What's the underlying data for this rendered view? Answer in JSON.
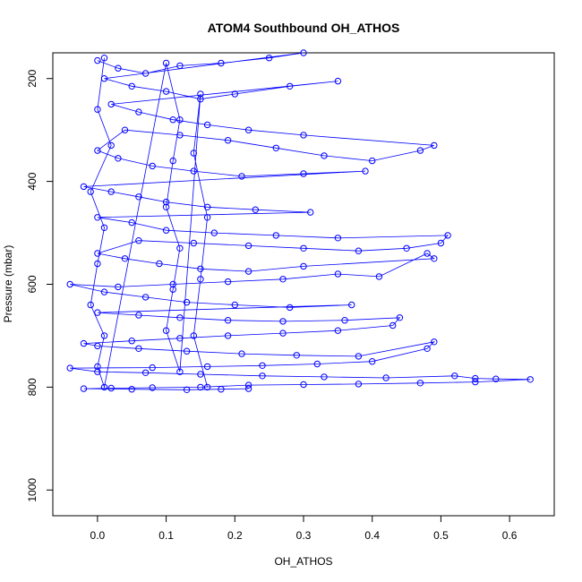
{
  "chart_data": {
    "type": "scatter",
    "title": "ATOM4 Southbound OH_ATHOS",
    "xlabel": "OH_ATHOS",
    "ylabel": "Pressure (mbar)",
    "xlim": [
      -0.065,
      0.665
    ],
    "ylim": [
      1050,
      150
    ],
    "y_reversed": true,
    "x_ticks": [
      0.0,
      0.1,
      0.2,
      0.3,
      0.4,
      0.5,
      0.6
    ],
    "x_tick_labels": [
      "0.0",
      "0.1",
      "0.2",
      "0.3",
      "0.4",
      "0.5",
      "0.6"
    ],
    "y_ticks": [
      200,
      400,
      600,
      800,
      1000
    ],
    "y_tick_labels": [
      "200",
      "400",
      "600",
      "800",
      "1000"
    ],
    "grid": false,
    "legend": "none",
    "marker": "open-circle",
    "connect_points": true,
    "series": [
      {
        "color": "#0000ff",
        "points": [
          [
            0.0,
            165
          ],
          [
            0.03,
            180
          ],
          [
            0.07,
            190
          ],
          [
            0.12,
            175
          ],
          [
            0.18,
            170
          ],
          [
            0.25,
            160
          ],
          [
            0.3,
            150
          ],
          [
            0.01,
            200
          ],
          [
            0.05,
            215
          ],
          [
            0.1,
            225
          ],
          [
            0.15,
            240
          ],
          [
            0.2,
            230
          ],
          [
            0.28,
            215
          ],
          [
            0.35,
            205
          ],
          [
            0.02,
            250
          ],
          [
            0.06,
            265
          ],
          [
            0.11,
            280
          ],
          [
            0.16,
            290
          ],
          [
            0.22,
            300
          ],
          [
            0.3,
            310
          ],
          [
            0.49,
            330
          ],
          [
            0.47,
            340
          ],
          [
            0.4,
            360
          ],
          [
            0.33,
            350
          ],
          [
            0.26,
            335
          ],
          [
            0.19,
            320
          ],
          [
            0.12,
            310
          ],
          [
            0.04,
            300
          ],
          [
            0.0,
            340
          ],
          [
            0.03,
            355
          ],
          [
            0.08,
            370
          ],
          [
            0.14,
            380
          ],
          [
            0.21,
            390
          ],
          [
            0.3,
            385
          ],
          [
            0.39,
            380
          ],
          [
            -0.02,
            410
          ],
          [
            0.02,
            420
          ],
          [
            0.06,
            430
          ],
          [
            0.1,
            440
          ],
          [
            0.16,
            450
          ],
          [
            0.23,
            455
          ],
          [
            0.31,
            460
          ],
          [
            0.0,
            470
          ],
          [
            0.05,
            480
          ],
          [
            0.1,
            495
          ],
          [
            0.17,
            500
          ],
          [
            0.26,
            505
          ],
          [
            0.35,
            510
          ],
          [
            0.51,
            505
          ],
          [
            0.5,
            520
          ],
          [
            0.45,
            530
          ],
          [
            0.38,
            535
          ],
          [
            0.3,
            530
          ],
          [
            0.22,
            525
          ],
          [
            0.14,
            520
          ],
          [
            0.06,
            515
          ],
          [
            0.0,
            540
          ],
          [
            0.04,
            550
          ],
          [
            0.09,
            560
          ],
          [
            0.15,
            570
          ],
          [
            0.22,
            575
          ],
          [
            0.3,
            565
          ],
          [
            0.49,
            550
          ],
          [
            0.48,
            540
          ],
          [
            0.41,
            585
          ],
          [
            0.35,
            580
          ],
          [
            0.27,
            590
          ],
          [
            0.19,
            595
          ],
          [
            0.11,
            600
          ],
          [
            0.03,
            605
          ],
          [
            -0.04,
            600
          ],
          [
            0.01,
            615
          ],
          [
            0.07,
            625
          ],
          [
            0.13,
            635
          ],
          [
            0.2,
            640
          ],
          [
            0.28,
            645
          ],
          [
            0.37,
            640
          ],
          [
            0.0,
            655
          ],
          [
            0.06,
            660
          ],
          [
            0.12,
            665
          ],
          [
            0.19,
            670
          ],
          [
            0.27,
            672
          ],
          [
            0.36,
            670
          ],
          [
            0.44,
            665
          ],
          [
            0.43,
            680
          ],
          [
            0.35,
            690
          ],
          [
            0.27,
            695
          ],
          [
            0.19,
            700
          ],
          [
            0.12,
            705
          ],
          [
            0.05,
            710
          ],
          [
            -0.02,
            715
          ],
          [
            0.0,
            720
          ],
          [
            0.06,
            725
          ],
          [
            0.13,
            730
          ],
          [
            0.21,
            735
          ],
          [
            0.29,
            738
          ],
          [
            0.38,
            740
          ],
          [
            0.49,
            712
          ],
          [
            0.48,
            725
          ],
          [
            0.4,
            750
          ],
          [
            0.32,
            755
          ],
          [
            0.24,
            758
          ],
          [
            0.16,
            760
          ],
          [
            0.08,
            762
          ],
          [
            -0.04,
            763
          ],
          [
            0.0,
            770
          ],
          [
            0.07,
            772
          ],
          [
            0.15,
            775
          ],
          [
            0.24,
            778
          ],
          [
            0.33,
            780
          ],
          [
            0.42,
            782
          ],
          [
            0.52,
            778
          ],
          [
            0.55,
            783
          ],
          [
            0.58,
            784
          ],
          [
            0.63,
            785
          ],
          [
            0.55,
            790
          ],
          [
            0.47,
            792
          ],
          [
            0.38,
            794
          ],
          [
            0.3,
            795
          ],
          [
            0.22,
            796
          ],
          [
            0.15,
            800
          ],
          [
            0.08,
            801
          ],
          [
            0.02,
            802
          ],
          [
            -0.02,
            803
          ],
          [
            0.05,
            804
          ],
          [
            0.13,
            805
          ],
          [
            0.18,
            804
          ],
          [
            0.22,
            803
          ]
        ]
      },
      {
        "color": "#0000ff",
        "points": [
          [
            0.01,
            160
          ],
          [
            0.0,
            260
          ],
          [
            0.02,
            330
          ],
          [
            -0.01,
            420
          ],
          [
            0.01,
            490
          ],
          [
            0.0,
            560
          ],
          [
            -0.01,
            640
          ],
          [
            0.01,
            700
          ],
          [
            0.0,
            760
          ],
          [
            0.01,
            800
          ],
          [
            0.1,
            170
          ],
          [
            0.12,
            280
          ],
          [
            0.11,
            360
          ],
          [
            0.1,
            450
          ],
          [
            0.12,
            530
          ],
          [
            0.11,
            610
          ],
          [
            0.1,
            690
          ],
          [
            0.12,
            770
          ],
          [
            0.15,
            230
          ],
          [
            0.14,
            345
          ],
          [
            0.16,
            470
          ],
          [
            0.15,
            590
          ],
          [
            0.14,
            700
          ],
          [
            0.16,
            800
          ]
        ]
      }
    ]
  }
}
